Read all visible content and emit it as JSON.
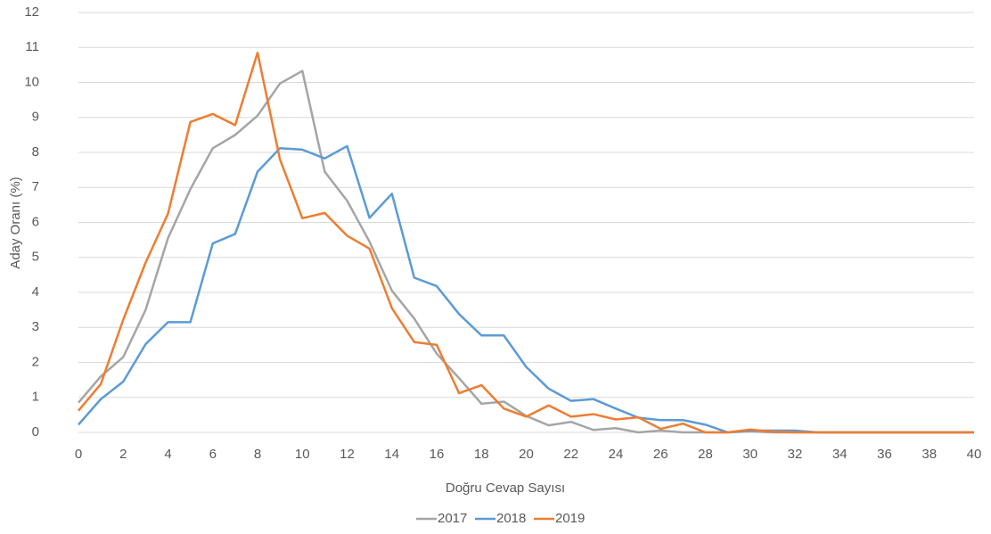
{
  "chart_data": {
    "type": "line",
    "x_label": "Doğru Cevap Sayısı",
    "y_label": "Aday Oranı (%)",
    "x": [
      0,
      1,
      2,
      3,
      4,
      5,
      6,
      7,
      8,
      9,
      10,
      11,
      12,
      13,
      14,
      15,
      16,
      17,
      18,
      19,
      20,
      21,
      22,
      23,
      24,
      25,
      26,
      27,
      28,
      29,
      30,
      31,
      32,
      33,
      34,
      35,
      36,
      37,
      38,
      39,
      40
    ],
    "series": [
      {
        "name": "2017",
        "color": "#a5a5a5",
        "values": [
          0.85,
          1.6,
          2.15,
          3.5,
          5.55,
          6.95,
          8.12,
          8.5,
          9.05,
          9.97,
          10.33,
          7.45,
          6.62,
          5.45,
          4.05,
          3.25,
          2.25,
          1.55,
          0.82,
          0.88,
          0.47,
          0.2,
          0.3,
          0.07,
          0.12,
          0,
          0.05,
          0,
          0,
          0,
          0.03,
          0,
          0,
          0,
          0,
          0,
          0,
          0,
          0,
          0,
          0
        ]
      },
      {
        "name": "2018",
        "color": "#5b9bd5",
        "values": [
          0.22,
          0.95,
          1.45,
          2.52,
          3.15,
          3.15,
          5.4,
          5.67,
          7.45,
          8.12,
          8.08,
          7.83,
          8.18,
          6.13,
          6.82,
          4.42,
          4.18,
          3.38,
          2.77,
          2.77,
          1.87,
          1.25,
          0.9,
          0.95,
          0.68,
          0.42,
          0.35,
          0.35,
          0.22,
          0,
          0.05,
          0.05,
          0.05,
          0,
          0,
          0,
          0,
          0,
          0,
          0,
          0
        ]
      },
      {
        "name": "2019",
        "color": "#ed7d31",
        "values": [
          0.62,
          1.38,
          3.22,
          4.85,
          6.25,
          8.87,
          9.1,
          8.78,
          10.85,
          7.8,
          6.12,
          6.27,
          5.62,
          5.25,
          3.55,
          2.58,
          2.5,
          1.12,
          1.35,
          0.68,
          0.45,
          0.77,
          0.45,
          0.52,
          0.37,
          0.43,
          0.1,
          0.25,
          0,
          0,
          0.08,
          0.02,
          0,
          0,
          0,
          0,
          0,
          0,
          0,
          0,
          0
        ]
      }
    ],
    "xlim": [
      0,
      40
    ],
    "xticks": [
      0,
      2,
      4,
      6,
      8,
      10,
      12,
      14,
      16,
      18,
      20,
      22,
      24,
      26,
      28,
      30,
      32,
      34,
      36,
      38,
      40
    ],
    "ylim": [
      0,
      12
    ],
    "yticks": [
      0,
      1,
      2,
      3,
      4,
      5,
      6,
      7,
      8,
      9,
      10,
      11,
      12
    ],
    "grid": true,
    "legend": "bottom"
  }
}
